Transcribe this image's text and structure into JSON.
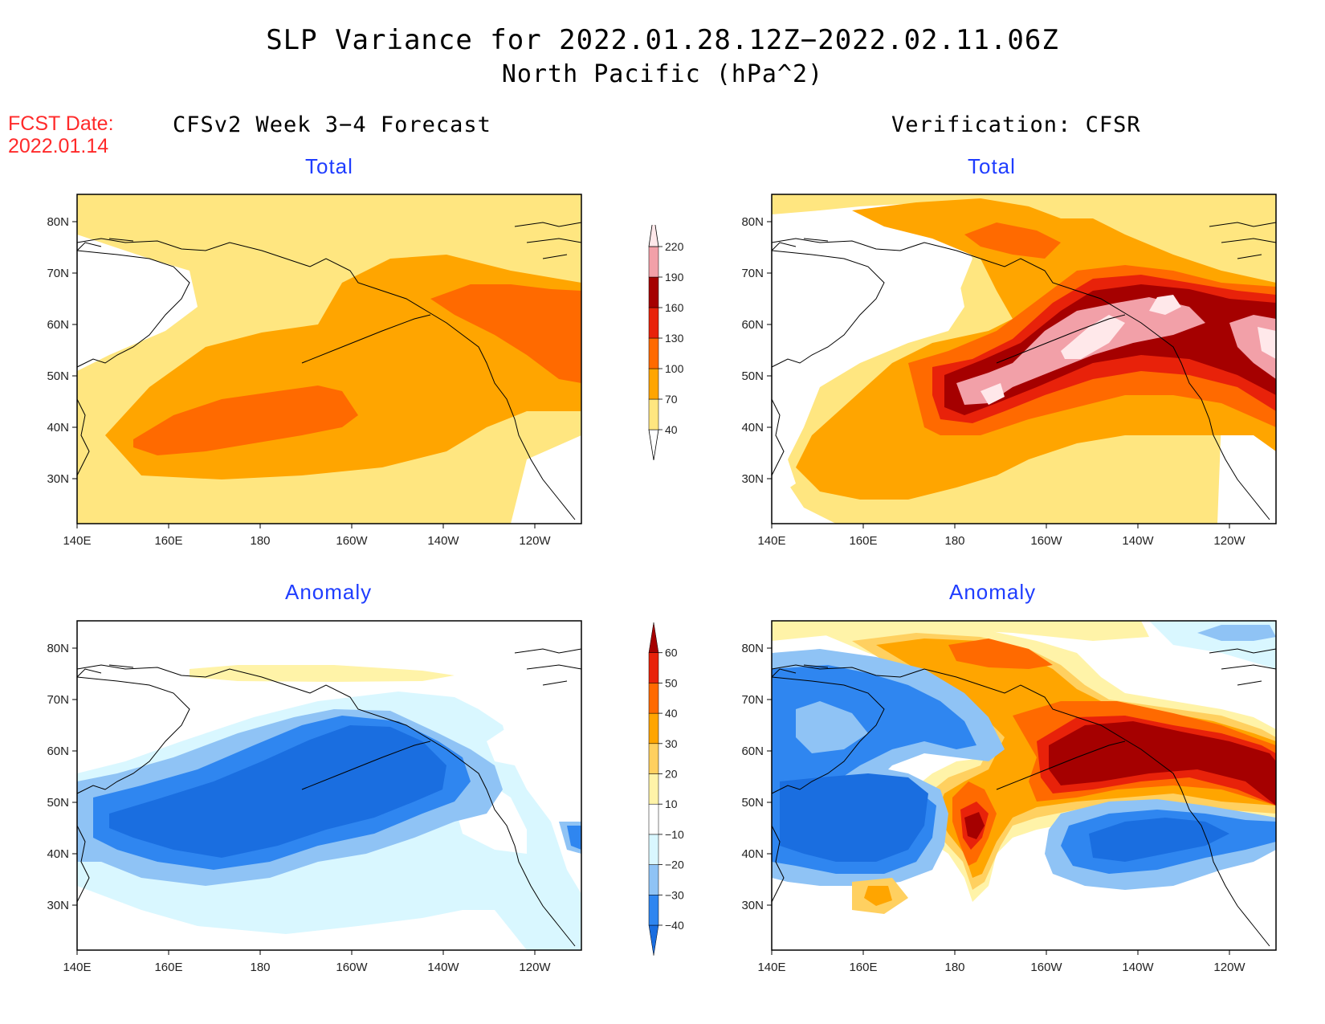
{
  "title": {
    "line1": "SLP Variance for 2022.01.28.12Z−2022.02.11.06Z",
    "line2": "North Pacific (hPa^2)"
  },
  "forecast_date": {
    "label": "FCST Date:",
    "value": "2022.01.14"
  },
  "columns": {
    "left": "CFSv2 Week 3−4 Forecast",
    "right": "Verification: CFSR"
  },
  "panels": {
    "forecast_total": "Total",
    "verification_total": "Total",
    "forecast_anomaly": "Anomaly",
    "verification_anomaly": "Anomaly"
  },
  "axes": {
    "lat_labels": [
      "80N",
      "70N",
      "60N",
      "50N",
      "40N",
      "30N"
    ],
    "lon_labels": [
      "140E",
      "160E",
      "180",
      "160W",
      "140W",
      "120W"
    ]
  },
  "colorbars": {
    "total": {
      "levels": [
        "40",
        "70",
        "100",
        "130",
        "160",
        "190",
        "220"
      ],
      "colors": [
        "#ffe680",
        "#ffa500",
        "#ff6a00",
        "#e8220a",
        "#a50000",
        "#f2a0a8",
        "#ffe8ea"
      ]
    },
    "anomaly": {
      "levels": [
        "−40",
        "−30",
        "−20",
        "−10",
        "10",
        "20",
        "30",
        "40",
        "50",
        "60"
      ],
      "colors": [
        "#1a6ee0",
        "#2f86f0",
        "#8fc3f5",
        "#d9f7ff",
        "#ffffff",
        "#fff3a8",
        "#ffd060",
        "#ffa500",
        "#ff6a00",
        "#e8220a",
        "#a50000"
      ]
    }
  }
}
